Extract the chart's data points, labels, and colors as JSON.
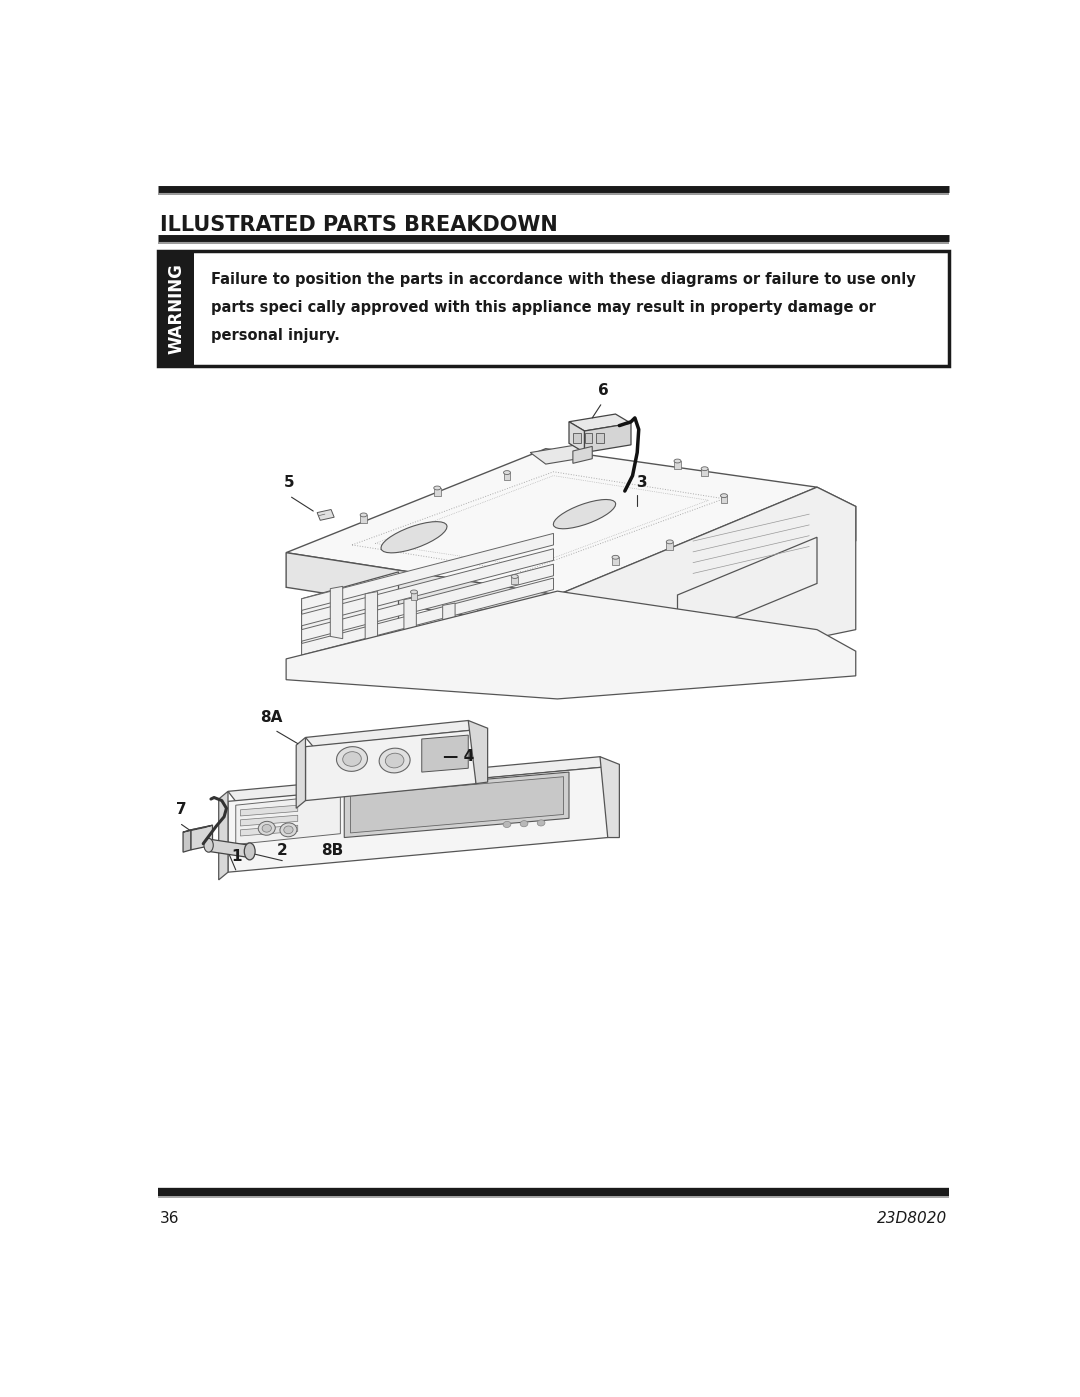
{
  "title": "ILLUSTRATED PARTS BREAKDOWN",
  "warning_text_line1": "Failure to position the parts in accordance with these diagrams or failure to use only",
  "warning_text_line2": "parts speci cally approved with this appliance may result in property damage or",
  "warning_text_line3": "personal injury.",
  "warning_label": "WARNING",
  "page_number": "36",
  "doc_number": "23D8020",
  "bg_color": "#ffffff",
  "text_color": "#1a1a1a",
  "edge_color": "#555555",
  "light_fill": "#f5f5f5",
  "mid_fill": "#e8e8e8",
  "dark_fill": "#cccccc",
  "title_fontsize": 15,
  "warn_fontsize": 10.5,
  "label_fontsize": 11,
  "footer_fontsize": 11,
  "line_lw": 0.9,
  "border_lw": 1.5
}
